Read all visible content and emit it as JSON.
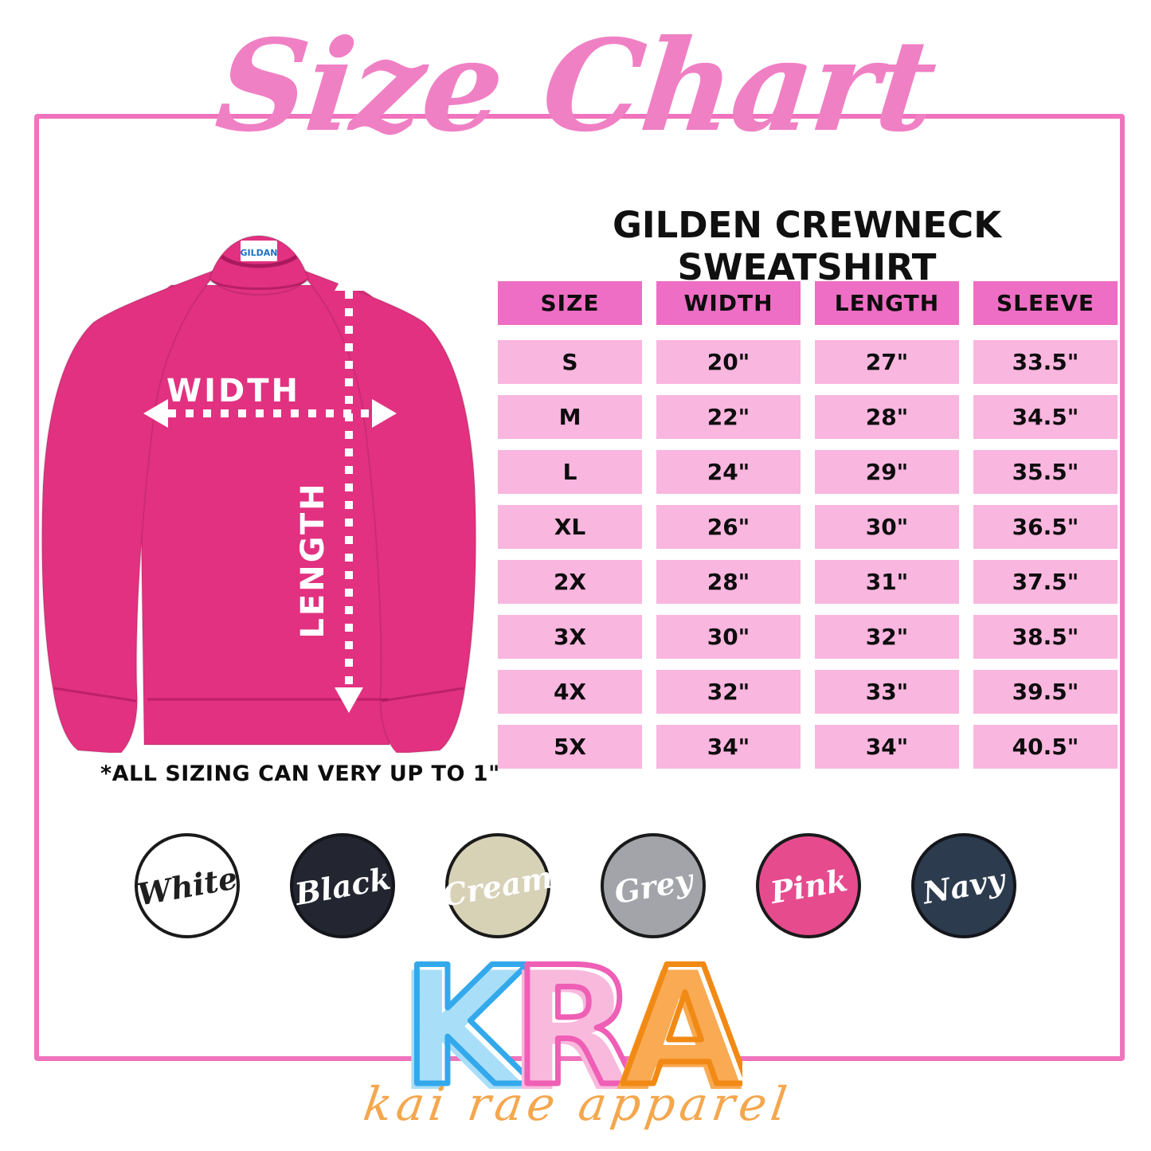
{
  "title": "Size Chart",
  "subtitle": "GILDEN CREWNECK SWEATSHIRT",
  "note": "*ALL SIZING CAN VERY UP TO 1\"",
  "diagram": {
    "width_label": "WIDTH",
    "length_label": "LENGTH",
    "collar_tag": "GILDAN",
    "shirt_color": "#e23180"
  },
  "chart_data": {
    "type": "table",
    "title": "GILDEN CREWNECK SWEATSHIRT",
    "columns": [
      "SIZE",
      "WIDTH",
      "LENGTH",
      "SLEEVE"
    ],
    "rows": [
      [
        "S",
        "20\"",
        "27\"",
        "33.5\""
      ],
      [
        "M",
        "22\"",
        "28\"",
        "34.5\""
      ],
      [
        "L",
        "24\"",
        "29\"",
        "35.5\""
      ],
      [
        "XL",
        "26\"",
        "30\"",
        "36.5\""
      ],
      [
        "2X",
        "28\"",
        "31\"",
        "37.5\""
      ],
      [
        "3X",
        "30\"",
        "32\"",
        "38.5\""
      ],
      [
        "4X",
        "32\"",
        "33\"",
        "39.5\""
      ],
      [
        "5X",
        "34\"",
        "34\"",
        "40.5\""
      ]
    ],
    "header_bg": "#ed6ec4",
    "row_bg": "#f9b6df"
  },
  "swatches": [
    {
      "label": "White",
      "bg": "#ffffff",
      "text": "#1f1f1f",
      "border": "#1a1a1a"
    },
    {
      "label": "Black",
      "bg": "#232630",
      "text": "#ffffff",
      "border": "#15161c"
    },
    {
      "label": "Cream",
      "bg": "#d7d1b6",
      "text": "#ffffff",
      "border": "#1a1a1a"
    },
    {
      "label": "Grey",
      "bg": "#a2a4aa",
      "text": "#ffffff",
      "border": "#1a1a1a"
    },
    {
      "label": "Pink",
      "bg": "#e64b8e",
      "text": "#ffffff",
      "border": "#1a1a1a"
    },
    {
      "label": "Navy",
      "bg": "#2c3b4e",
      "text": "#ffffff",
      "border": "#15161c"
    }
  ],
  "logo": {
    "letters": [
      {
        "char": "K",
        "fill": "#a9def8",
        "stroke": "#33a9ec"
      },
      {
        "char": "R",
        "fill": "#f9b9dd",
        "stroke": "#ee5fb5"
      },
      {
        "char": "A",
        "fill": "#f9aa52",
        "stroke": "#f18a15"
      }
    ],
    "tagline": "kai rae apparel",
    "tagline_color": "#f5a74e"
  },
  "frame_color": "#f173bd",
  "title_color": "#f080c4"
}
